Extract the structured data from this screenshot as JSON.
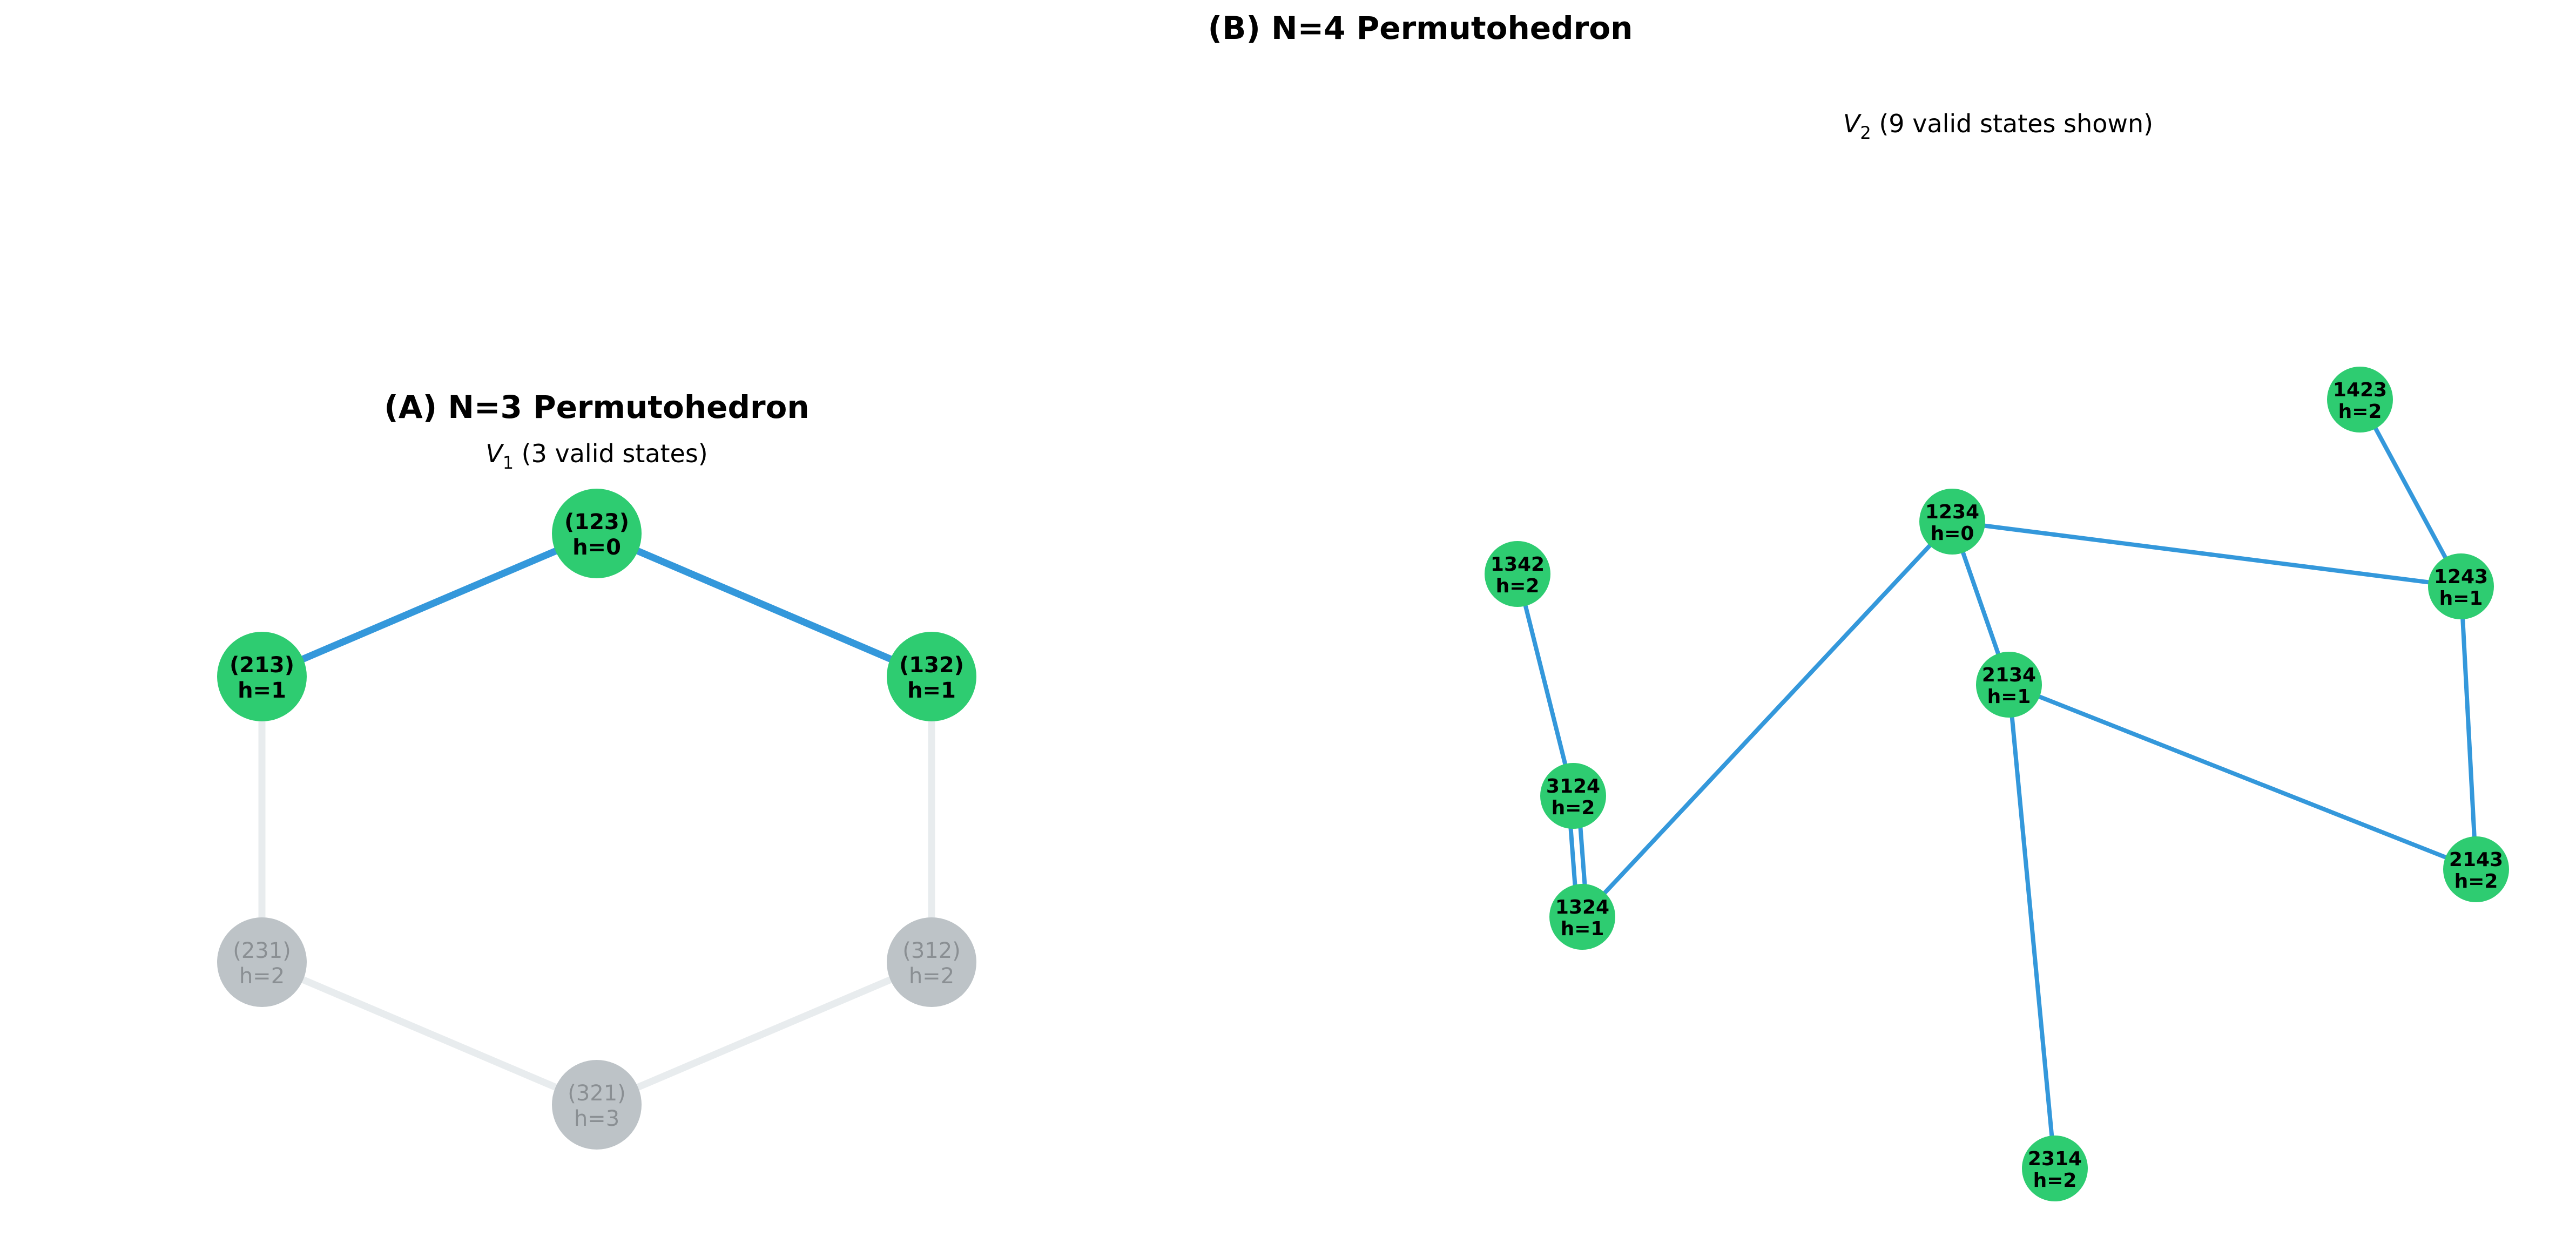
{
  "colors": {
    "valid_node": "#2ecc71",
    "invalid_node": "#bdc3c7",
    "valid_edge": "#3498db",
    "invalid_edge": "#e8ecee",
    "invalid_text": "#8a8f93"
  },
  "panel_a": {
    "title": "(A) N=3 Permutohedron",
    "subtitle_symbol": "V",
    "subtitle_sub": "1",
    "subtitle_rest": " (3 valid states)",
    "nodes": [
      {
        "id": "123",
        "label": "(123)",
        "h": "h=0",
        "valid": true
      },
      {
        "id": "213",
        "label": "(213)",
        "h": "h=1",
        "valid": true
      },
      {
        "id": "132",
        "label": "(132)",
        "h": "h=1",
        "valid": true
      },
      {
        "id": "231",
        "label": "(231)",
        "h": "h=2",
        "valid": false
      },
      {
        "id": "312",
        "label": "(312)",
        "h": "h=2",
        "valid": false
      },
      {
        "id": "321",
        "label": "(321)",
        "h": "h=3",
        "valid": false
      }
    ],
    "edges": [
      {
        "from": "123",
        "to": "213",
        "valid": true
      },
      {
        "from": "123",
        "to": "132",
        "valid": true
      },
      {
        "from": "213",
        "to": "231",
        "valid": false
      },
      {
        "from": "132",
        "to": "312",
        "valid": false
      },
      {
        "from": "231",
        "to": "321",
        "valid": false
      },
      {
        "from": "312",
        "to": "321",
        "valid": false
      }
    ]
  },
  "panel_b": {
    "title": "(B) N=4 Permutohedron",
    "subtitle_symbol": "V",
    "subtitle_sub": "2",
    "subtitle_rest": " (9 valid states shown)",
    "nodes": [
      {
        "id": "1234",
        "label": "1234",
        "h": "h=0"
      },
      {
        "id": "1423",
        "label": "1423",
        "h": "h=2"
      },
      {
        "id": "1342",
        "label": "1342",
        "h": "h=2"
      },
      {
        "id": "1243",
        "label": "1243",
        "h": "h=1"
      },
      {
        "id": "2134",
        "label": "2134",
        "h": "h=1"
      },
      {
        "id": "3124",
        "label": "3124",
        "h": "h=2"
      },
      {
        "id": "2143",
        "label": "2143",
        "h": "h=2"
      },
      {
        "id": "1324",
        "label": "1324",
        "h": "h=1"
      },
      {
        "id": "2314",
        "label": "2314",
        "h": "h=2"
      }
    ],
    "edges": [
      {
        "from": "1234",
        "to": "1243"
      },
      {
        "from": "1234",
        "to": "2134"
      },
      {
        "from": "1234",
        "to": "1324"
      },
      {
        "from": "1423",
        "to": "1243"
      },
      {
        "from": "1243",
        "to": "2143"
      },
      {
        "from": "2134",
        "to": "2143"
      },
      {
        "from": "2134",
        "to": "2314"
      },
      {
        "from": "1342",
        "to": "3124"
      },
      {
        "from": "3124",
        "to": "1324"
      },
      {
        "from": "3124",
        "to": "1324"
      }
    ]
  }
}
